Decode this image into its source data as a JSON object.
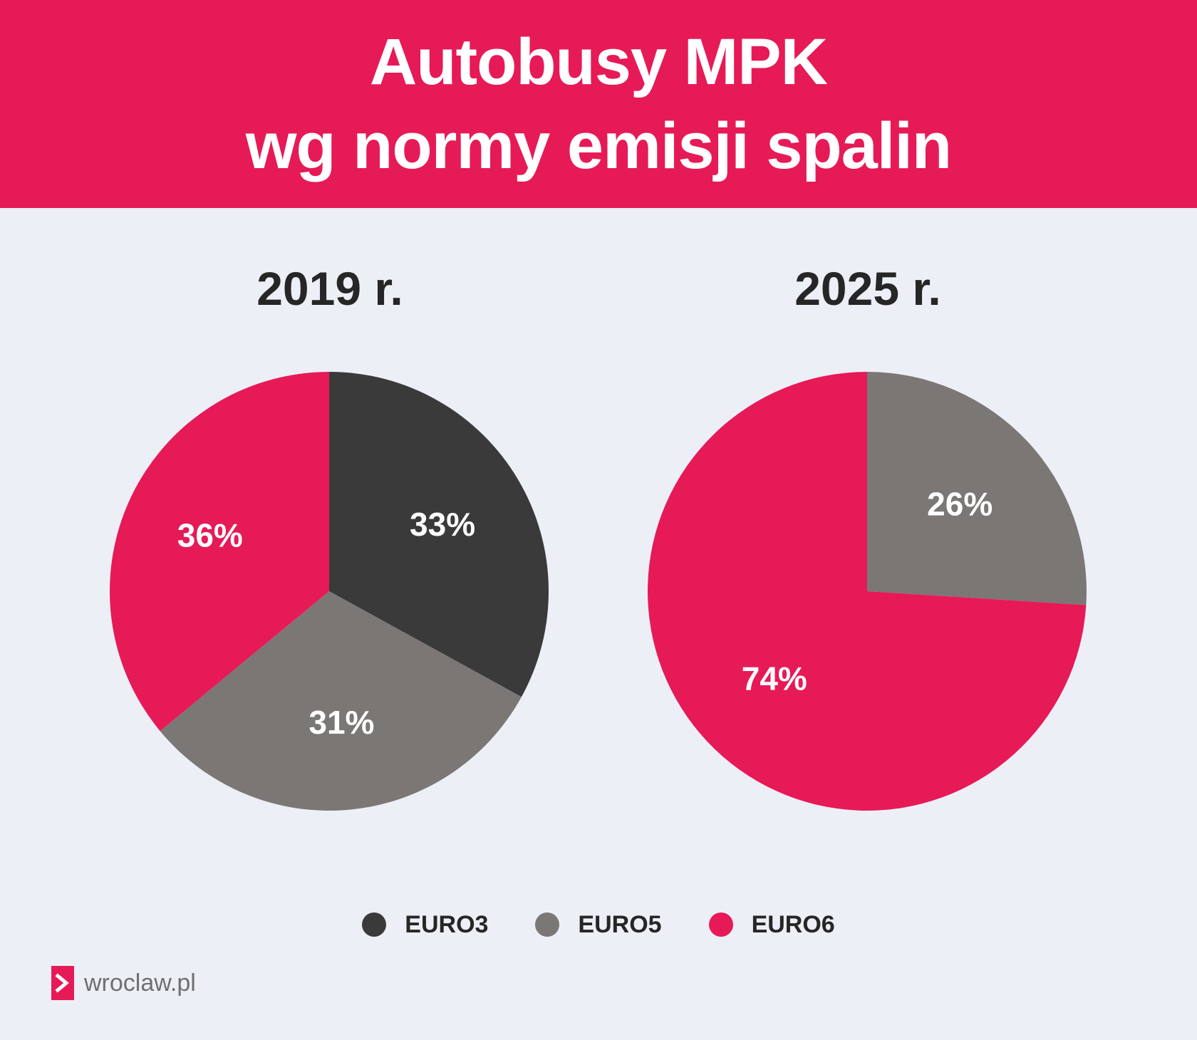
{
  "header": {
    "title_line1": "Autobusy MPK",
    "title_line2": "wg normy emisji spalin"
  },
  "colors": {
    "EURO3": "#3A3A3A",
    "EURO5": "#7B7775",
    "EURO6": "#E61A57"
  },
  "chart_data": [
    {
      "type": "pie",
      "title": "2019 r.",
      "slices": [
        {
          "label": "EURO3",
          "value": 33,
          "display": "33%"
        },
        {
          "label": "EURO5",
          "value": 31,
          "display": "31%"
        },
        {
          "label": "EURO6",
          "value": 36,
          "display": "36%"
        }
      ]
    },
    {
      "type": "pie",
      "title": "2025 r.",
      "slices": [
        {
          "label": "EURO5",
          "value": 26,
          "display": "26%"
        },
        {
          "label": "EURO6",
          "value": 74,
          "display": "74%"
        }
      ]
    }
  ],
  "legend": {
    "position": "bottom",
    "items": [
      "EURO3",
      "EURO5",
      "EURO6"
    ]
  },
  "logo": {
    "text": "wroclaw.pl",
    "icon": "chevron-right-icon"
  }
}
